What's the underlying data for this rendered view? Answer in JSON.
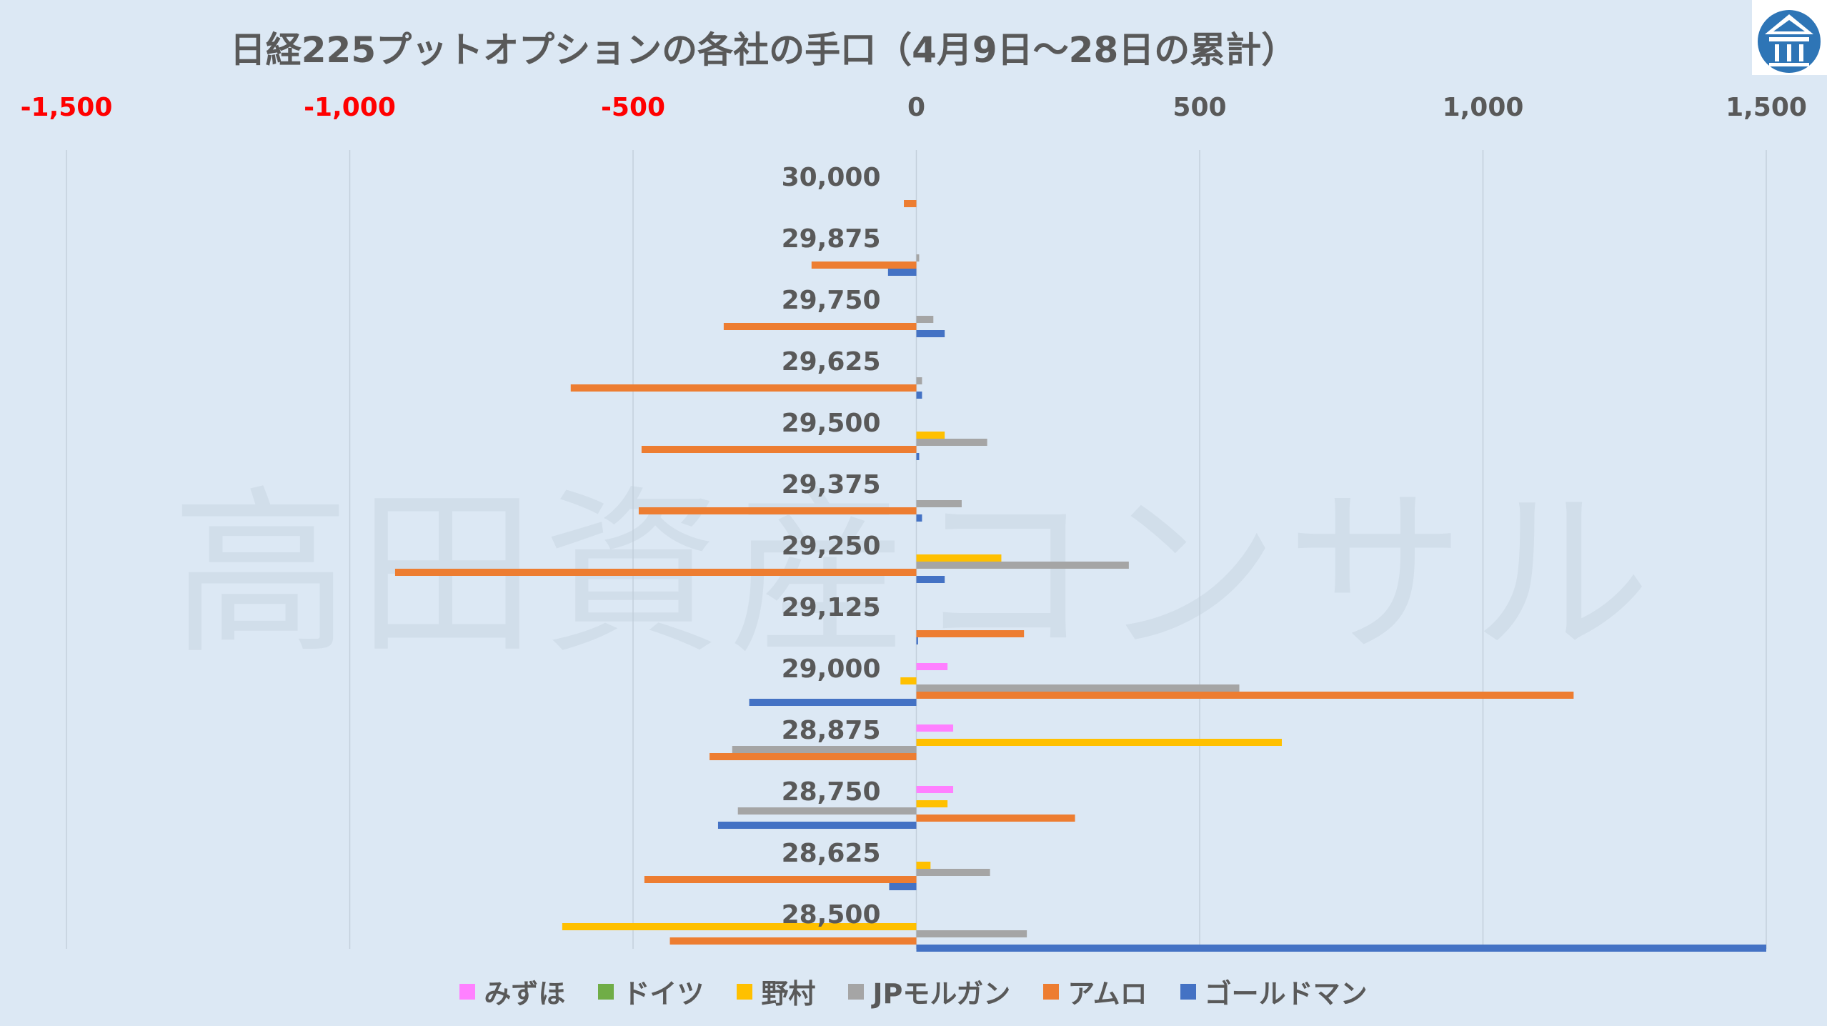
{
  "chart_data": {
    "type": "bar",
    "orientation": "horizontal",
    "title": "日経225プットオプションの各社の手口（4月9日〜28日の累計）",
    "xlim": [
      -1500,
      1500
    ],
    "x_ticks": [
      {
        "value": -1500,
        "label": "-1,500"
      },
      {
        "value": -1000,
        "label": "-1,000"
      },
      {
        "value": -500,
        "label": "-500"
      },
      {
        "value": 0,
        "label": "0"
      },
      {
        "value": 500,
        "label": "500"
      },
      {
        "value": 1000,
        "label": "1,000"
      },
      {
        "value": 1500,
        "label": "1,500"
      }
    ],
    "x_tick_color_negative": "#ff0000",
    "x_tick_color_positive": "#595959",
    "gridlines": true,
    "legend_position": "bottom",
    "categories": [
      "30,000",
      "29,875",
      "29,750",
      "29,625",
      "29,500",
      "29,375",
      "29,250",
      "29,125",
      "29,000",
      "28,875",
      "28,750",
      "28,625",
      "28,500"
    ],
    "series": [
      {
        "name": "みずほ",
        "color": "#ff80ff",
        "values": [
          0,
          0,
          0,
          0,
          0,
          0,
          0,
          0,
          55,
          65,
          65,
          0,
          0
        ]
      },
      {
        "name": "ドイツ",
        "color": "#70ad47",
        "values": [
          0,
          0,
          0,
          0,
          0,
          0,
          0,
          0,
          0,
          0,
          0,
          0,
          0
        ]
      },
      {
        "name": "野村",
        "color": "#ffc000",
        "values": [
          0,
          0,
          0,
          0,
          50,
          0,
          150,
          0,
          -28,
          645,
          55,
          25,
          -625
        ]
      },
      {
        "name": "JPモルガン",
        "color": "#a5a5a5",
        "values": [
          0,
          5,
          30,
          10,
          125,
          80,
          375,
          0,
          570,
          -325,
          -315,
          130,
          195
        ]
      },
      {
        "name": "アムロ",
        "color": "#ed7d31",
        "values": [
          -22,
          -185,
          -340,
          -610,
          -485,
          -490,
          -920,
          190,
          1160,
          -365,
          280,
          -480,
          -435
        ]
      },
      {
        "name": "ゴールドマン",
        "color": "#4472c4",
        "values": [
          0,
          -50,
          50,
          10,
          5,
          10,
          50,
          3,
          -295,
          0,
          -350,
          -48,
          1500
        ]
      }
    ]
  },
  "watermark": "高田資産コンサル",
  "logo": {
    "name": "takata-logo",
    "color": "#2e75b6"
  }
}
